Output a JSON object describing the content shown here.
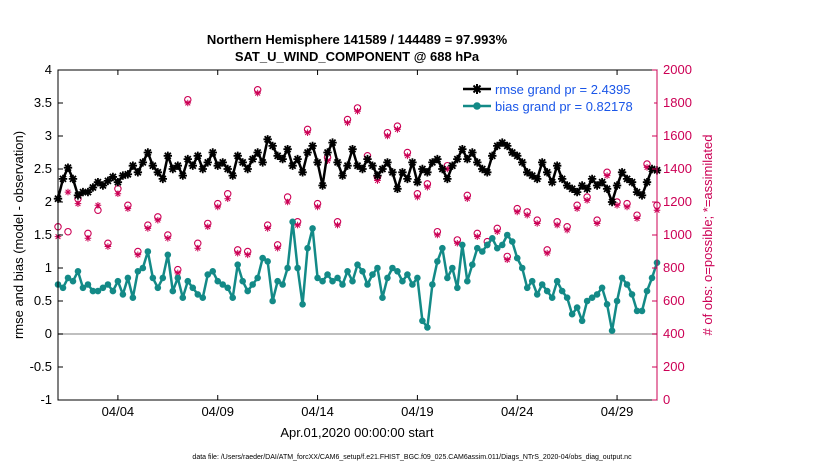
{
  "chart_data": {
    "type": "line",
    "title": "Northern Hemisphere 141589 / 144489 = 97.993%",
    "subtitle": "SAT_U_WIND_COMPONENT @ 688 hPa",
    "xlabel": "Apr.01,2020 00:00:00 start",
    "ylabel": "rmse and bias (model - observation)",
    "y2label": "# of obs: o=possible; *=assimilated",
    "footer": "data file: /Users/raeder/DAI/ATM_forcXX/CAM6_setup/f.e21.FHIST_BGC.f09_025.CAM6assim.011/Diags_NTrS_2020-04/obs_diag_output.nc",
    "xlim": [
      1,
      31
    ],
    "xtick_values": [
      4,
      9,
      14,
      19,
      24,
      29
    ],
    "xtick_labels": [
      "04/04",
      "04/09",
      "04/14",
      "04/19",
      "04/24",
      "04/29"
    ],
    "ylim": [
      -1,
      4
    ],
    "yticks": [
      "-1",
      "-0.5",
      "0",
      "0.5",
      "1",
      "1.5",
      "2",
      "2.5",
      "3",
      "3.5",
      "4"
    ],
    "y2lim": [
      0,
      2000
    ],
    "y2ticks": [
      "0",
      "200",
      "400",
      "600",
      "800",
      "1000",
      "1200",
      "1400",
      "1600",
      "1800",
      "2000"
    ],
    "colors": {
      "rmse": "#000000",
      "bias": "#138a87",
      "obs": "#cc0055",
      "zero": "#aaaaaa"
    },
    "series": [
      {
        "name": "rmse",
        "legend": "rmse grand pr = 2.4395",
        "x": [
          1.0,
          1.25,
          1.5,
          1.75,
          2.0,
          2.25,
          2.5,
          2.75,
          3.0,
          3.25,
          3.5,
          3.75,
          4.0,
          4.25,
          4.5,
          4.75,
          5.0,
          5.25,
          5.5,
          5.75,
          6.0,
          6.25,
          6.5,
          6.75,
          7.0,
          7.25,
          7.5,
          7.75,
          8.0,
          8.25,
          8.5,
          8.75,
          9.0,
          9.25,
          9.5,
          9.75,
          10.0,
          10.25,
          10.5,
          10.75,
          11.0,
          11.25,
          11.5,
          11.75,
          12.0,
          12.25,
          12.5,
          12.75,
          13.0,
          13.25,
          13.5,
          13.75,
          14.0,
          14.25,
          14.5,
          14.75,
          15.0,
          15.25,
          15.5,
          15.75,
          16.0,
          16.25,
          16.5,
          16.75,
          17.0,
          17.25,
          17.5,
          17.75,
          18.0,
          18.25,
          18.5,
          18.75,
          19.0,
          19.25,
          19.5,
          19.75,
          20.0,
          20.25,
          20.5,
          20.75,
          21.0,
          21.25,
          21.5,
          21.75,
          22.0,
          22.25,
          22.5,
          22.75,
          23.0,
          23.25,
          23.5,
          23.75,
          24.0,
          24.25,
          24.5,
          24.75,
          25.0,
          25.25,
          25.5,
          25.75,
          26.0,
          26.25,
          26.5,
          26.75,
          27.0,
          27.25,
          27.5,
          27.75,
          28.0,
          28.25,
          28.5,
          28.75,
          29.0,
          29.25,
          29.5,
          29.75,
          30.0,
          30.25,
          30.5,
          30.75,
          31.0
        ],
        "values": [
          2.05,
          2.35,
          2.52,
          2.35,
          2.1,
          2.15,
          2.15,
          2.22,
          2.3,
          2.25,
          2.32,
          2.38,
          2.3,
          2.4,
          2.42,
          2.55,
          2.45,
          2.6,
          2.75,
          2.55,
          2.45,
          2.35,
          2.7,
          2.5,
          2.55,
          2.4,
          2.65,
          2.55,
          2.7,
          2.5,
          2.6,
          2.75,
          2.55,
          2.6,
          2.5,
          2.4,
          2.7,
          2.6,
          2.5,
          2.65,
          2.75,
          2.6,
          2.95,
          2.85,
          2.7,
          2.65,
          2.8,
          2.55,
          2.65,
          2.45,
          2.75,
          2.85,
          2.6,
          2.25,
          2.75,
          2.9,
          2.6,
          2.4,
          2.55,
          2.8,
          2.55,
          2.5,
          2.65,
          2.55,
          2.4,
          2.5,
          2.6,
          2.45,
          2.2,
          2.45,
          2.35,
          2.6,
          2.3,
          2.5,
          2.45,
          2.6,
          2.65,
          2.5,
          2.35,
          2.55,
          2.65,
          2.8,
          2.65,
          2.75,
          2.6,
          2.5,
          2.45,
          2.7,
          2.85,
          2.9,
          2.85,
          2.75,
          2.7,
          2.6,
          2.45,
          2.4,
          2.35,
          2.6,
          2.45,
          2.3,
          2.55,
          2.35,
          2.25,
          2.2,
          2.15,
          2.25,
          2.2,
          2.35,
          2.25,
          2.3,
          2.2,
          2.0,
          2.25,
          2.45,
          2.35,
          2.3,
          2.15,
          2.1,
          2.3,
          2.5,
          2.48
        ]
      },
      {
        "name": "bias",
        "legend": "bias grand pr = 0.82178",
        "x": [
          1.0,
          1.25,
          1.5,
          1.75,
          2.0,
          2.25,
          2.5,
          2.75,
          3.0,
          3.25,
          3.5,
          3.75,
          4.0,
          4.25,
          4.5,
          4.75,
          5.0,
          5.25,
          5.5,
          5.75,
          6.0,
          6.25,
          6.5,
          6.75,
          7.0,
          7.25,
          7.5,
          7.75,
          8.0,
          8.25,
          8.5,
          8.75,
          9.0,
          9.25,
          9.5,
          9.75,
          10.0,
          10.25,
          10.5,
          10.75,
          11.0,
          11.25,
          11.5,
          11.75,
          12.0,
          12.25,
          12.5,
          12.75,
          13.0,
          13.25,
          13.5,
          13.75,
          14.0,
          14.25,
          14.5,
          14.75,
          15.0,
          15.25,
          15.5,
          15.75,
          16.0,
          16.25,
          16.5,
          16.75,
          17.0,
          17.25,
          17.5,
          17.75,
          18.0,
          18.25,
          18.5,
          18.75,
          19.0,
          19.25,
          19.5,
          19.75,
          20.0,
          20.25,
          20.5,
          20.75,
          21.0,
          21.25,
          21.5,
          21.75,
          22.0,
          22.25,
          22.5,
          22.75,
          23.0,
          23.25,
          23.5,
          23.75,
          24.0,
          24.25,
          24.5,
          24.75,
          25.0,
          25.25,
          25.5,
          25.75,
          26.0,
          26.25,
          26.5,
          26.75,
          27.0,
          27.25,
          27.5,
          27.75,
          28.0,
          28.25,
          28.5,
          28.75,
          29.0,
          29.25,
          29.5,
          29.75,
          30.0,
          30.25,
          30.5,
          30.75,
          31.0
        ],
        "values": [
          0.75,
          0.7,
          0.85,
          0.8,
          0.95,
          0.7,
          0.75,
          0.65,
          0.65,
          0.7,
          0.75,
          0.65,
          0.8,
          0.6,
          0.85,
          0.55,
          0.95,
          1.0,
          1.25,
          0.85,
          0.7,
          0.85,
          1.2,
          0.65,
          0.85,
          0.55,
          0.8,
          0.7,
          0.6,
          0.55,
          0.9,
          0.95,
          0.8,
          0.75,
          0.7,
          0.55,
          1.05,
          0.8,
          0.65,
          0.75,
          0.85,
          1.15,
          1.1,
          0.5,
          0.8,
          0.75,
          1.0,
          1.7,
          1.0,
          0.45,
          1.3,
          1.6,
          0.85,
          0.8,
          0.9,
          0.8,
          0.85,
          0.75,
          0.95,
          0.8,
          1.05,
          0.95,
          0.75,
          0.9,
          1.0,
          0.55,
          0.85,
          1.0,
          0.95,
          0.8,
          0.9,
          0.75,
          0.85,
          0.2,
          0.1,
          0.75,
          1.1,
          1.3,
          0.85,
          1.0,
          0.7,
          1.35,
          0.8,
          1.05,
          1.3,
          1.25,
          1.35,
          1.45,
          1.3,
          1.35,
          1.5,
          1.4,
          1.15,
          1.0,
          0.7,
          0.8,
          0.6,
          0.75,
          0.65,
          0.55,
          0.8,
          0.65,
          0.55,
          0.3,
          0.4,
          0.2,
          0.5,
          0.55,
          0.6,
          0.7,
          0.45,
          0.05,
          0.5,
          0.85,
          0.75,
          0.6,
          0.35,
          0.35,
          0.65,
          0.85,
          1.08
        ]
      },
      {
        "name": "obs_possible",
        "marker": "o",
        "x": [
          1.0,
          1.5,
          2.0,
          2.5,
          3.0,
          3.5,
          4.0,
          4.5,
          5.0,
          5.5,
          6.0,
          6.5,
          7.0,
          7.5,
          8.0,
          8.5,
          9.0,
          9.5,
          10.0,
          10.5,
          11.0,
          11.5,
          12.0,
          12.5,
          13.0,
          13.5,
          14.0,
          14.5,
          15.0,
          15.5,
          16.0,
          16.5,
          17.0,
          17.5,
          18.0,
          18.5,
          19.0,
          19.5,
          20.0,
          20.5,
          21.0,
          21.5,
          22.0,
          22.5,
          23.0,
          23.5,
          24.0,
          24.5,
          25.0,
          25.5,
          26.0,
          26.5,
          27.0,
          27.5,
          28.0,
          28.5,
          29.0,
          29.5,
          30.0,
          30.5,
          31.0
        ],
        "values": [
          1050,
          1020,
          1220,
          1010,
          1150,
          950,
          1280,
          1180,
          900,
          1060,
          1110,
          1000,
          790,
          1820,
          950,
          1070,
          1190,
          1250,
          910,
          900,
          1880,
          1060,
          940,
          1230,
          1080,
          1640,
          1190,
          1470,
          1080,
          1700,
          1770,
          1480,
          1350,
          1620,
          1660,
          1500,
          1250,
          1310,
          1020,
          1420,
          970,
          1240,
          1010,
          960,
          1040,
          870,
          1160,
          1140,
          1090,
          910,
          1080,
          1050,
          1180,
          1230,
          1090,
          1380,
          1200,
          1190,
          1120,
          1430,
          1180
        ]
      },
      {
        "name": "obs_assimilated",
        "marker": "*",
        "x": [
          1.0,
          1.5,
          2.0,
          2.5,
          3.0,
          3.5,
          4.0,
          4.5,
          5.0,
          5.5,
          6.0,
          6.5,
          7.0,
          7.5,
          8.0,
          8.5,
          9.0,
          9.5,
          10.0,
          10.5,
          11.0,
          11.5,
          12.0,
          12.5,
          13.0,
          13.5,
          14.0,
          14.5,
          15.0,
          15.5,
          16.0,
          16.5,
          17.0,
          17.5,
          18.0,
          18.5,
          19.0,
          19.5,
          20.0,
          20.5,
          21.0,
          21.5,
          22.0,
          22.5,
          23.0,
          23.5,
          24.0,
          24.5,
          25.0,
          25.5,
          26.0,
          26.5,
          27.0,
          27.5,
          28.0,
          28.5,
          29.0,
          29.5,
          30.0,
          30.5,
          31.0
        ],
        "values": [
          990,
          1260,
          1190,
          980,
          1180,
          930,
          1250,
          1160,
          880,
          1040,
          1090,
          980,
          770,
          1800,
          920,
          1050,
          1170,
          1220,
          890,
          880,
          1860,
          1040,
          920,
          1200,
          1060,
          1620,
          1170,
          1450,
          1060,
          1680,
          1750,
          1460,
          1330,
          1600,
          1640,
          1480,
          1230,
          1290,
          1000,
          1400,
          950,
          1220,
          990,
          940,
          1020,
          850,
          1140,
          1120,
          1070,
          890,
          1060,
          1030,
          1160,
          1210,
          1070,
          1360,
          1180,
          1170,
          1100,
          1410,
          1150
        ]
      }
    ]
  }
}
